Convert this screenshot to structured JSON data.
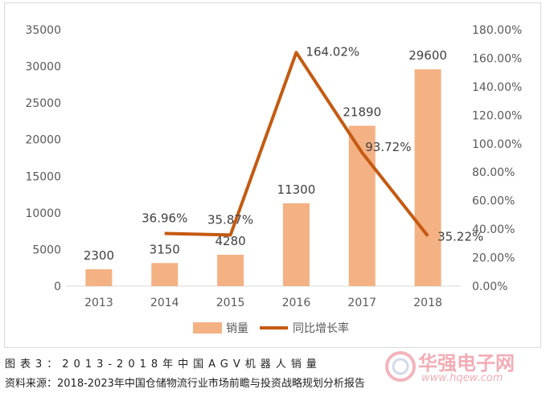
{
  "chart_data": {
    "type": "bar+line",
    "categories": [
      "2013",
      "2014",
      "2015",
      "2016",
      "2017",
      "2018"
    ],
    "series": [
      {
        "name": "销量",
        "type": "bar",
        "axis": "left",
        "color": "#f4b183",
        "values": [
          2300,
          3150,
          4280,
          11300,
          21890,
          29600
        ],
        "labels": [
          "2300",
          "3150",
          "4280",
          "11300",
          "21890",
          "29600"
        ]
      },
      {
        "name": "同比增长率",
        "type": "line",
        "axis": "right",
        "color": "#c55a11",
        "values": [
          null,
          36.96,
          35.87,
          164.02,
          93.72,
          35.22
        ],
        "labels": [
          "",
          "36.96%",
          "35.87%",
          "164.02%",
          "93.72%",
          "35.22%"
        ]
      }
    ],
    "y_left": {
      "min": 0,
      "max": 35000,
      "ticks": [
        "0",
        "5000",
        "10000",
        "15000",
        "20000",
        "25000",
        "30000",
        "35000"
      ]
    },
    "y_right": {
      "min": 0,
      "max": 180,
      "ticks": [
        "0.00%",
        "20.00%",
        "40.00%",
        "60.00%",
        "80.00%",
        "100.00%",
        "120.00%",
        "140.00%",
        "160.00%",
        "180.00%"
      ]
    },
    "grid": false,
    "legend_position": "bottom"
  },
  "caption": "图表3：2013-2018年中国AGV机器人销量",
  "source": "资料来源：2018-2023年中国仓储物流行业市场前瞻与投资战略规划分析报告",
  "watermark": {
    "text": "华强电子网",
    "url": "www.hqew.com"
  }
}
